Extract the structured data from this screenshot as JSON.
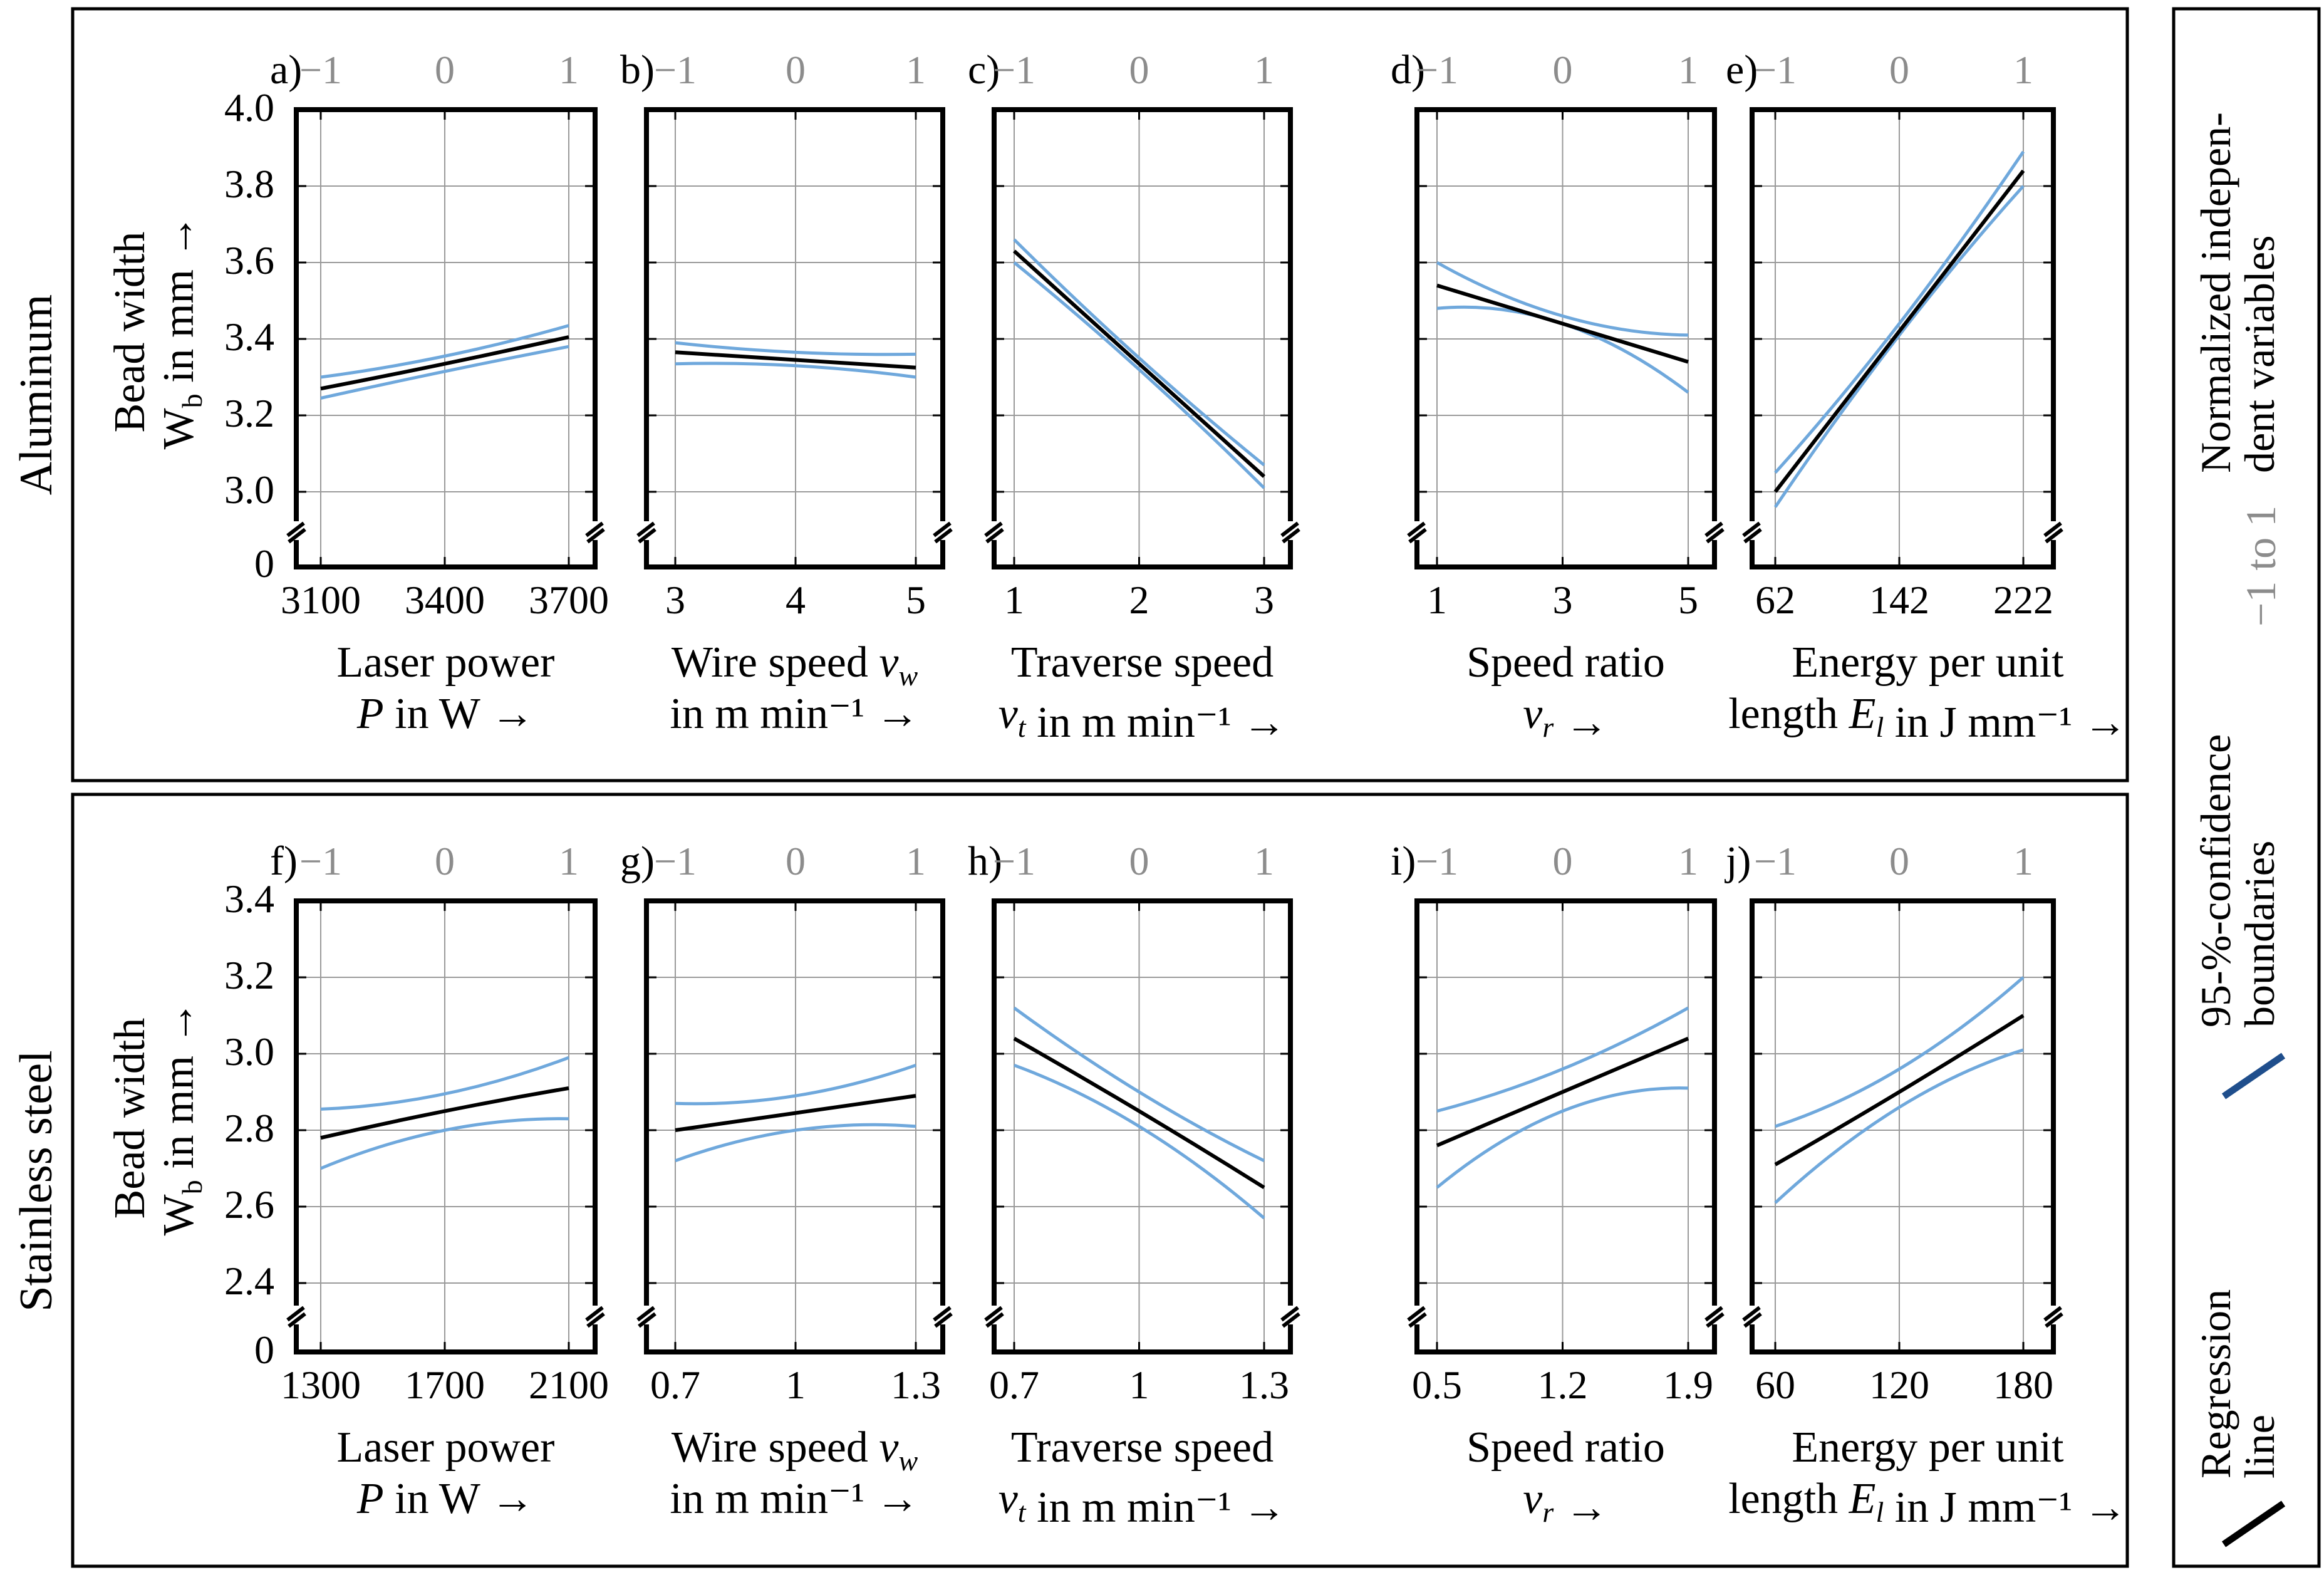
{
  "colors": {
    "regression": "#000000",
    "confidence": "#6fa8dc",
    "legend_conf": "#1f4e8c",
    "normalized": "#8c8c8c",
    "grid": "#9a9a9a"
  },
  "normalized_ticks": [
    "−1",
    "0",
    "1"
  ],
  "legend": {
    "regression": [
      "Regression",
      "line"
    ],
    "confidence": [
      "95-%-confidence",
      "boundaries"
    ],
    "normalized_range": "−1 to 1",
    "normalized": [
      "Normalized indepen-",
      "dent variables"
    ]
  },
  "rows": [
    {
      "label": "Aluminum",
      "ylabel": [
        "Bead width",
        "W",
        "b",
        " in mm →"
      ],
      "yticks": [
        "4.0",
        "3.8",
        "3.6",
        "3.4",
        "3.2",
        "3.0"
      ],
      "ybreak_label": "0"
    },
    {
      "label": "Stainless steel",
      "ylabel": [
        "Bead width",
        "W",
        "b",
        " in mm →"
      ],
      "yticks": [
        "3.4",
        "3.2",
        "3.0",
        "2.8",
        "2.6",
        "2.4"
      ],
      "ybreak_label": "0"
    }
  ],
  "panels": [
    {
      "label": "a)",
      "xticks": [
        "3100",
        "3400",
        "3700"
      ],
      "xlabel": [
        "Laser power",
        "P in W →"
      ]
    },
    {
      "label": "b)",
      "xticks": [
        "3",
        "4",
        "5"
      ],
      "xlabel": [
        "Wire speed v_w",
        "in m min⁻¹ →"
      ]
    },
    {
      "label": "c)",
      "xticks": [
        "1",
        "2",
        "3"
      ],
      "xlabel": [
        "Traverse speed",
        "v_t in m min⁻¹ →"
      ]
    },
    {
      "label": "d)",
      "xticks": [
        "1",
        "3",
        "5"
      ],
      "xlabel": [
        "Speed ratio",
        "v_r →"
      ]
    },
    {
      "label": "e)",
      "xticks": [
        "62",
        "142",
        "222"
      ],
      "xlabel": [
        "Energy per unit",
        "length E_l in J mm⁻¹ →"
      ]
    },
    {
      "label": "f)",
      "xticks": [
        "1300",
        "1700",
        "2100"
      ],
      "xlabel": [
        "Laser power",
        "P in W →"
      ]
    },
    {
      "label": "g)",
      "xticks": [
        "0.7",
        "1",
        "1.3"
      ],
      "xlabel": [
        "Wire speed v_w",
        "in m min⁻¹ →"
      ]
    },
    {
      "label": "h)",
      "xticks": [
        "0.7",
        "1",
        "1.3"
      ],
      "xlabel": [
        "Traverse speed",
        "v_t in m min⁻¹ →"
      ]
    },
    {
      "label": "i)",
      "xticks": [
        "0.5",
        "1.2",
        "1.9"
      ],
      "xlabel": [
        "Speed ratio",
        "v_r →"
      ]
    },
    {
      "label": "j)",
      "xticks": [
        "60",
        "120",
        "180"
      ],
      "xlabel": [
        "Energy per unit",
        "length E_l in J mm⁻¹ →"
      ]
    }
  ],
  "chart_data": [
    {
      "type": "line",
      "title": "a) Aluminum – Laser power",
      "xlabel": "Laser power P in W",
      "ylabel": "Bead width Wb in mm",
      "x": [
        3100,
        3700
      ],
      "xlim": [
        3100,
        3700
      ],
      "ylim": [
        3.0,
        4.0
      ],
      "series": [
        {
          "name": "Regression line",
          "x": [
            3100,
            3400,
            3700
          ],
          "values": [
            3.27,
            3.335,
            3.405
          ]
        },
        {
          "name": "Upper 95% boundary",
          "x": [
            3100,
            3400,
            3700
          ],
          "values": [
            3.3,
            3.355,
            3.435
          ]
        },
        {
          "name": "Lower 95% boundary",
          "x": [
            3100,
            3400,
            3700
          ],
          "values": [
            3.245,
            3.315,
            3.38
          ]
        }
      ]
    },
    {
      "type": "line",
      "title": "b) Aluminum – Wire speed",
      "xlabel": "Wire speed v_w in m min⁻¹",
      "ylabel": "Bead width Wb in mm",
      "xlim": [
        3,
        5
      ],
      "ylim": [
        3.0,
        4.0
      ],
      "series": [
        {
          "name": "Regression line",
          "x": [
            3,
            4,
            5
          ],
          "values": [
            3.365,
            3.345,
            3.325
          ]
        },
        {
          "name": "Upper 95% boundary",
          "x": [
            3,
            4,
            5
          ],
          "values": [
            3.39,
            3.365,
            3.36
          ]
        },
        {
          "name": "Lower 95% boundary",
          "x": [
            3,
            4,
            5
          ],
          "values": [
            3.335,
            3.33,
            3.3
          ]
        }
      ]
    },
    {
      "type": "line",
      "title": "c) Aluminum – Traverse speed",
      "xlabel": "Traverse speed v_t in m min⁻¹",
      "ylabel": "Bead width Wb in mm",
      "xlim": [
        1,
        3
      ],
      "ylim": [
        3.0,
        4.0
      ],
      "series": [
        {
          "name": "Regression line",
          "x": [
            1,
            2,
            3
          ],
          "values": [
            3.63,
            3.335,
            3.04
          ]
        },
        {
          "name": "Upper 95% boundary",
          "x": [
            1,
            2,
            3
          ],
          "values": [
            3.66,
            3.35,
            3.07
          ]
        },
        {
          "name": "Lower 95% boundary",
          "x": [
            1,
            2,
            3
          ],
          "values": [
            3.6,
            3.32,
            3.01
          ]
        }
      ]
    },
    {
      "type": "line",
      "title": "d) Aluminum – Speed ratio",
      "xlabel": "Speed ratio v_r",
      "ylabel": "Bead width Wb in mm",
      "xlim": [
        1,
        5
      ],
      "ylim": [
        3.0,
        4.0
      ],
      "series": [
        {
          "name": "Regression line",
          "x": [
            1,
            3,
            5
          ],
          "values": [
            3.54,
            3.44,
            3.34
          ]
        },
        {
          "name": "Upper 95% boundary",
          "x": [
            1,
            3,
            5
          ],
          "values": [
            3.6,
            3.46,
            3.41
          ]
        },
        {
          "name": "Lower 95% boundary",
          "x": [
            1,
            3,
            5
          ],
          "values": [
            3.48,
            3.44,
            3.26
          ]
        }
      ]
    },
    {
      "type": "line",
      "title": "e) Aluminum – Energy per unit length",
      "xlabel": "Energy per unit length E_l in J mm⁻¹",
      "ylabel": "Bead width Wb in mm",
      "xlim": [
        62,
        222
      ],
      "ylim": [
        3.0,
        4.0
      ],
      "series": [
        {
          "name": "Regression line",
          "x": [
            62,
            142,
            222
          ],
          "values": [
            3.0,
            3.42,
            3.84
          ]
        },
        {
          "name": "Upper 95% boundary",
          "x": [
            62,
            142,
            222
          ],
          "values": [
            3.05,
            3.44,
            3.89
          ]
        },
        {
          "name": "Lower 95% boundary",
          "x": [
            62,
            142,
            222
          ],
          "values": [
            2.96,
            3.41,
            3.8
          ]
        }
      ]
    },
    {
      "type": "line",
      "title": "f) Stainless steel – Laser power",
      "xlabel": "Laser power P in W",
      "ylabel": "Bead width Wb in mm",
      "xlim": [
        1300,
        2100
      ],
      "ylim": [
        2.4,
        3.4
      ],
      "series": [
        {
          "name": "Regression line",
          "x": [
            1300,
            1700,
            2100
          ],
          "values": [
            2.78,
            2.85,
            2.91
          ]
        },
        {
          "name": "Upper 95% boundary",
          "x": [
            1300,
            1700,
            2100
          ],
          "values": [
            2.855,
            2.895,
            2.99
          ]
        },
        {
          "name": "Lower 95% boundary",
          "x": [
            1300,
            1700,
            2100
          ],
          "values": [
            2.7,
            2.8,
            2.83
          ]
        }
      ]
    },
    {
      "type": "line",
      "title": "g) Stainless steel – Wire speed",
      "xlabel": "Wire speed v_w in m min⁻¹",
      "ylabel": "Bead width Wb in mm",
      "xlim": [
        0.7,
        1.3
      ],
      "ylim": [
        2.4,
        3.4
      ],
      "series": [
        {
          "name": "Regression line",
          "x": [
            0.7,
            1,
            1.3
          ],
          "values": [
            2.8,
            2.845,
            2.89
          ]
        },
        {
          "name": "Upper 95% boundary",
          "x": [
            0.7,
            1,
            1.3
          ],
          "values": [
            2.87,
            2.89,
            2.97
          ]
        },
        {
          "name": "Lower 95% boundary",
          "x": [
            0.7,
            1,
            1.3
          ],
          "values": [
            2.72,
            2.8,
            2.81
          ]
        }
      ]
    },
    {
      "type": "line",
      "title": "h) Stainless steel – Traverse speed",
      "xlabel": "Traverse speed v_t in m min⁻¹",
      "ylabel": "Bead width Wb in mm",
      "xlim": [
        0.7,
        1.3
      ],
      "ylim": [
        2.4,
        3.4
      ],
      "series": [
        {
          "name": "Regression line",
          "x": [
            0.7,
            1,
            1.3
          ],
          "values": [
            3.04,
            2.85,
            2.65
          ]
        },
        {
          "name": "Upper 95% boundary",
          "x": [
            0.7,
            1,
            1.3
          ],
          "values": [
            3.12,
            2.9,
            2.72
          ]
        },
        {
          "name": "Lower 95% boundary",
          "x": [
            0.7,
            1,
            1.3
          ],
          "values": [
            2.97,
            2.81,
            2.57
          ]
        }
      ]
    },
    {
      "type": "line",
      "title": "i) Stainless steel – Speed ratio",
      "xlabel": "Speed ratio v_r",
      "ylabel": "Bead width Wb in mm",
      "xlim": [
        0.5,
        1.9
      ],
      "ylim": [
        2.4,
        3.4
      ],
      "series": [
        {
          "name": "Regression line",
          "x": [
            0.5,
            1.2,
            1.9
          ],
          "values": [
            2.76,
            2.9,
            3.04
          ]
        },
        {
          "name": "Upper 95% boundary",
          "x": [
            0.5,
            1.2,
            1.9
          ],
          "values": [
            2.85,
            2.96,
            3.12
          ]
        },
        {
          "name": "Lower 95% boundary",
          "x": [
            0.5,
            1.2,
            1.9
          ],
          "values": [
            2.65,
            2.85,
            2.91
          ]
        }
      ]
    },
    {
      "type": "line",
      "title": "j) Stainless steel – Energy per unit length",
      "xlabel": "Energy per unit length E_l in J mm⁻¹",
      "ylabel": "Bead width Wb in mm",
      "xlim": [
        60,
        180
      ],
      "ylim": [
        2.4,
        3.4
      ],
      "series": [
        {
          "name": "Regression line",
          "x": [
            60,
            120,
            180
          ],
          "values": [
            2.71,
            2.9,
            3.1
          ]
        },
        {
          "name": "Upper 95% boundary",
          "x": [
            60,
            120,
            180
          ],
          "values": [
            2.81,
            2.96,
            3.2
          ]
        },
        {
          "name": "Lower 95% boundary",
          "x": [
            60,
            120,
            180
          ],
          "values": [
            2.61,
            2.86,
            3.01
          ]
        }
      ]
    }
  ]
}
